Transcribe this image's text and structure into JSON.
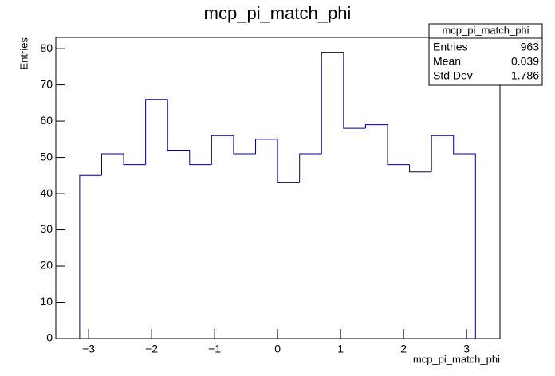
{
  "chart_data": {
    "type": "histogram",
    "title": "mcp_pi_match_phi",
    "x_label": "mcp_pi_match_phi",
    "y_label": "Entries",
    "bins": [
      -3.1416,
      -2.7925,
      -2.4435,
      -2.0944,
      -1.7453,
      -1.3963,
      -1.0472,
      -0.6981,
      -0.3491,
      0,
      0.3491,
      0.6981,
      1.0472,
      1.3963,
      1.7453,
      2.0944,
      2.4435,
      2.7925,
      3.1416
    ],
    "values": [
      45,
      51,
      48,
      66,
      52,
      48,
      56,
      51,
      55,
      43,
      51,
      79,
      58,
      59,
      48,
      46,
      56,
      51
    ],
    "color": "#000080",
    "xlim": [
      -3.52,
      3.53
    ],
    "ylim": [
      0,
      83.1
    ],
    "xticks": [
      {
        "value": -3,
        "label": "−3"
      },
      {
        "value": -2,
        "label": "−2"
      },
      {
        "value": -1,
        "label": "−1"
      },
      0,
      1,
      2,
      3
    ],
    "yticks": [
      0,
      10,
      20,
      30,
      40,
      50,
      60,
      70,
      80
    ],
    "stats": {
      "title": "mcp_pi_match_phi",
      "rows": [
        [
          "Entries",
          963
        ],
        [
          "Mean",
          0.039
        ],
        [
          "Std Dev",
          1.786
        ]
      ]
    }
  }
}
